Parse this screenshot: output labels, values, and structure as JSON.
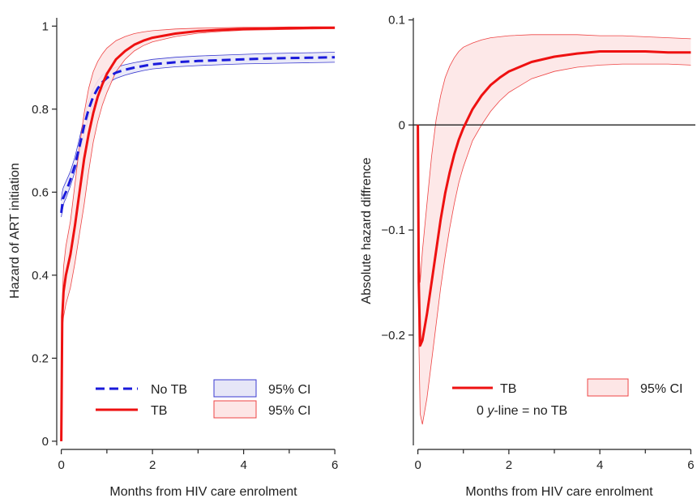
{
  "chart_data": [
    {
      "type": "line",
      "xlabel": "Months from HIV care enrolment",
      "ylabel": "Hazard of ART initiation",
      "xlim": [
        -0.1,
        6.3
      ],
      "ylim": [
        -0.01,
        1.02
      ],
      "xticks": [
        0,
        2,
        4,
        6
      ],
      "xminor": [
        1,
        3,
        5
      ],
      "yticks": [
        0,
        0.2,
        0.4,
        0.6,
        0.8,
        1
      ],
      "ytick_labels": [
        "0",
        "0.2",
        "0.4",
        "0.6",
        "0.8",
        "1"
      ],
      "series": [
        {
          "name": "No TB",
          "color": "#1a1adb",
          "style": "dashed",
          "x": [
            0,
            0.02,
            0.04,
            0.06,
            0.08,
            0.1,
            0.2,
            0.3,
            0.4,
            0.5,
            0.6,
            0.7,
            0.8,
            0.9,
            1.0,
            1.1,
            1.2,
            1.4,
            1.6,
            1.8,
            2.0,
            2.5,
            3.0,
            3.5,
            4.0,
            4.5,
            5.0,
            5.5,
            6.0
          ],
          "y": [
            0.55,
            0.57,
            0.585,
            0.59,
            0.595,
            0.6,
            0.63,
            0.665,
            0.71,
            0.76,
            0.8,
            0.83,
            0.85,
            0.865,
            0.875,
            0.882,
            0.888,
            0.895,
            0.9,
            0.904,
            0.908,
            0.913,
            0.916,
            0.918,
            0.92,
            0.922,
            0.923,
            0.924,
            0.925
          ],
          "ci_lower": [
            0.54,
            0.555,
            0.565,
            0.575,
            0.58,
            0.585,
            0.615,
            0.65,
            0.69,
            0.74,
            0.78,
            0.81,
            0.83,
            0.848,
            0.86,
            0.868,
            0.874,
            0.882,
            0.888,
            0.893,
            0.897,
            0.902,
            0.905,
            0.907,
            0.909,
            0.91,
            0.911,
            0.912,
            0.913
          ],
          "ci_upper": [
            0.58,
            0.6,
            0.61,
            0.615,
            0.62,
            0.625,
            0.65,
            0.685,
            0.73,
            0.78,
            0.82,
            0.848,
            0.868,
            0.882,
            0.89,
            0.896,
            0.901,
            0.907,
            0.912,
            0.916,
            0.92,
            0.925,
            0.928,
            0.93,
            0.932,
            0.934,
            0.935,
            0.936,
            0.937
          ]
        },
        {
          "name": "TB",
          "color": "#ee1111",
          "style": "solid",
          "x": [
            0,
            0.02,
            0.05,
            0.1,
            0.2,
            0.3,
            0.4,
            0.5,
            0.6,
            0.7,
            0.8,
            0.9,
            1.0,
            1.2,
            1.4,
            1.6,
            1.8,
            2.0,
            2.5,
            3.0,
            3.5,
            4.0,
            4.5,
            5.0,
            5.5,
            6.0
          ],
          "y": [
            0.0,
            0.3,
            0.36,
            0.4,
            0.45,
            0.52,
            0.6,
            0.68,
            0.74,
            0.79,
            0.83,
            0.86,
            0.885,
            0.92,
            0.94,
            0.955,
            0.965,
            0.972,
            0.982,
            0.988,
            0.991,
            0.993,
            0.994,
            0.995,
            0.996,
            0.996
          ],
          "ci_lower": [
            0.0,
            0.27,
            0.3,
            0.33,
            0.37,
            0.43,
            0.5,
            0.57,
            0.65,
            0.72,
            0.77,
            0.81,
            0.84,
            0.89,
            0.92,
            0.94,
            0.953,
            0.962,
            0.975,
            0.983,
            0.987,
            0.99,
            0.991,
            0.992,
            0.993,
            0.994
          ],
          "ci_upper": [
            0.0,
            0.33,
            0.42,
            0.47,
            0.53,
            0.62,
            0.71,
            0.79,
            0.85,
            0.89,
            0.915,
            0.933,
            0.947,
            0.965,
            0.975,
            0.982,
            0.986,
            0.989,
            0.993,
            0.995,
            0.996,
            0.997,
            0.997,
            0.998,
            0.998,
            0.998
          ]
        }
      ],
      "legend": {
        "placement": "bottom",
        "entries": [
          {
            "label": "No TB",
            "kind": "line",
            "color": "#1a1adb",
            "style": "dashed"
          },
          {
            "label": "95% CI",
            "kind": "box",
            "fill": "#e6e6f7",
            "stroke": "#3a3ad0"
          },
          {
            "label": "TB",
            "kind": "line",
            "color": "#ee1111",
            "style": "solid"
          },
          {
            "label": "95% CI",
            "kind": "box",
            "fill": "#fde6e6",
            "stroke": "#ee4444"
          }
        ]
      }
    },
    {
      "type": "line",
      "xlabel": "Months from HIV care enrolment",
      "ylabel": "Absolute hazard diffrence",
      "xlim": [
        -0.1,
        6.1
      ],
      "ylim": [
        -0.305,
        0.102
      ],
      "xticks": [
        0,
        2,
        4,
        6
      ],
      "xminor": [
        1,
        3,
        5
      ],
      "yticks": [
        -0.2,
        -0.1,
        0,
        0.1
      ],
      "ytick_labels": [
        "−0.2",
        "−0.1",
        "0",
        "0.1"
      ],
      "reference_line": 0,
      "series": [
        {
          "name": "TB",
          "color": "#ee1111",
          "style": "solid",
          "x": [
            0,
            0.02,
            0.05,
            0.1,
            0.2,
            0.3,
            0.4,
            0.5,
            0.6,
            0.7,
            0.8,
            0.9,
            1.0,
            1.2,
            1.4,
            1.6,
            1.8,
            2.0,
            2.5,
            3.0,
            3.5,
            4.0,
            4.5,
            5.0,
            5.5,
            6.0
          ],
          "y": [
            0.0,
            -0.15,
            -0.21,
            -0.205,
            -0.18,
            -0.15,
            -0.12,
            -0.09,
            -0.065,
            -0.045,
            -0.028,
            -0.014,
            -0.003,
            0.015,
            0.028,
            0.038,
            0.045,
            0.051,
            0.06,
            0.065,
            0.068,
            0.07,
            0.07,
            0.07,
            0.069,
            0.069
          ],
          "ci_lower": [
            0.0,
            -0.2,
            -0.275,
            -0.285,
            -0.26,
            -0.225,
            -0.19,
            -0.155,
            -0.125,
            -0.098,
            -0.075,
            -0.055,
            -0.04,
            -0.015,
            0.0,
            0.013,
            0.023,
            0.031,
            0.044,
            0.051,
            0.055,
            0.057,
            0.058,
            0.058,
            0.058,
            0.057
          ],
          "ci_upper": [
            0.0,
            -0.1,
            -0.15,
            -0.12,
            -0.075,
            -0.03,
            0.005,
            0.028,
            0.045,
            0.056,
            0.064,
            0.07,
            0.074,
            0.078,
            0.081,
            0.083,
            0.084,
            0.085,
            0.086,
            0.086,
            0.086,
            0.085,
            0.085,
            0.084,
            0.083,
            0.082
          ]
        }
      ],
      "legend": {
        "placement": "bottom",
        "entries": [
          {
            "label": "TB",
            "kind": "line",
            "color": "#ee1111",
            "style": "solid"
          },
          {
            "label": "95% CI",
            "kind": "box",
            "fill": "#fde6e6",
            "stroke": "#ee4444"
          }
        ],
        "note_parts": [
          "0 ",
          "y",
          "-line = no TB"
        ]
      }
    }
  ]
}
